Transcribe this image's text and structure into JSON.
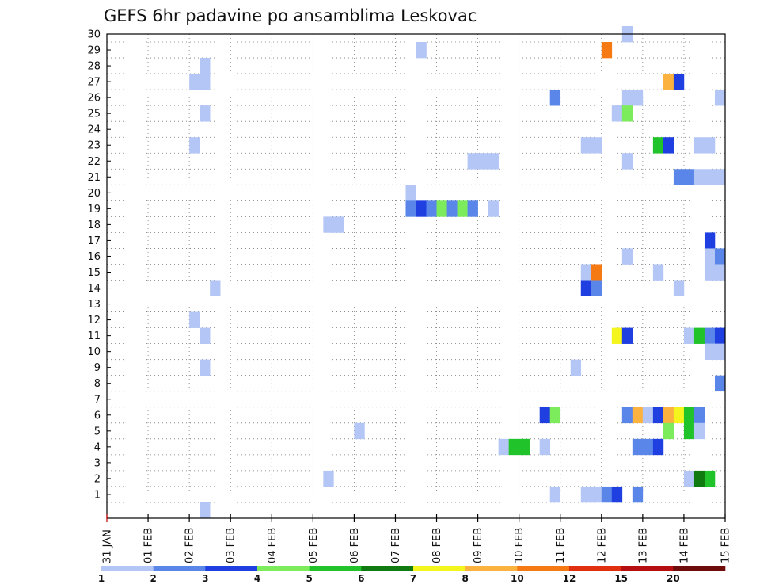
{
  "chart_data": {
    "type": "heatmap",
    "title": "GEFS 6hr padavine po ansamblima Leskovac",
    "y_members": [
      "1",
      "2",
      "3",
      "4",
      "5",
      "6",
      "7",
      "8",
      "9",
      "10",
      "11",
      "12",
      "13",
      "14",
      "15",
      "16",
      "17",
      "18",
      "19",
      "20",
      "21",
      "22",
      "23",
      "24",
      "25",
      "26",
      "27",
      "28",
      "29",
      "30"
    ],
    "x_ticks": [
      "31 JAN",
      "01 FEB",
      "02 FEB",
      "03 FEB",
      "04 FEB",
      "05 FEB",
      "06 FEB",
      "07 FEB",
      "08 FEB",
      "09 FEB",
      "10 FEB",
      "11 FEB",
      "12 FEB",
      "13 FEB",
      "14 FEB",
      "15 FEB"
    ],
    "x_range_days": [
      0,
      15
    ],
    "y_range": [
      0,
      30
    ],
    "grid": true,
    "colorbar": {
      "labels": [
        "1",
        "2",
        "3",
        "4",
        "5",
        "6",
        "7",
        "8",
        "10",
        "12",
        "15",
        "20"
      ],
      "colors": [
        "#b3c6f5",
        "#5a86ea",
        "#1f3fe0",
        "#7ceb5c",
        "#21c32a",
        "#0f7a0f",
        "#f5f51e",
        "#fbb23f",
        "#f57a14",
        "#e0300f",
        "#b50f0f",
        "#6e0b0b"
      ]
    },
    "cells": [
      {
        "m": 30,
        "d": 12.5,
        "v": 1
      },
      {
        "m": 29,
        "d": 7.5,
        "v": 1
      },
      {
        "m": 29,
        "d": 12,
        "v": 10
      },
      {
        "m": 28,
        "d": 2.25,
        "v": 1
      },
      {
        "m": 27,
        "d": 2,
        "v": 1
      },
      {
        "m": 27,
        "d": 2.25,
        "v": 1
      },
      {
        "m": 27,
        "d": 13.5,
        "v": 8
      },
      {
        "m": 27,
        "d": 13.75,
        "v": 3
      },
      {
        "m": 26,
        "d": 10.75,
        "v": 2
      },
      {
        "m": 26,
        "d": 12.5,
        "v": 1
      },
      {
        "m": 26,
        "d": 12.75,
        "v": 1
      },
      {
        "m": 26,
        "d": 14.75,
        "v": 1
      },
      {
        "m": 25,
        "d": 2.25,
        "v": 1
      },
      {
        "m": 25,
        "d": 12.25,
        "v": 1
      },
      {
        "m": 25,
        "d": 12.5,
        "v": 4
      },
      {
        "m": 23,
        "d": 2,
        "v": 1
      },
      {
        "m": 23,
        "d": 11.5,
        "v": 1
      },
      {
        "m": 23,
        "d": 11.75,
        "v": 1
      },
      {
        "m": 23,
        "d": 13.25,
        "v": 5
      },
      {
        "m": 23,
        "d": 13.5,
        "v": 3
      },
      {
        "m": 23,
        "d": 14.25,
        "v": 1
      },
      {
        "m": 23,
        "d": 14.5,
        "v": 1
      },
      {
        "m": 22,
        "d": 8.75,
        "v": 1
      },
      {
        "m": 22,
        "d": 9,
        "v": 1
      },
      {
        "m": 22,
        "d": 9.25,
        "v": 1
      },
      {
        "m": 22,
        "d": 12.5,
        "v": 1
      },
      {
        "m": 21,
        "d": 13.75,
        "v": 2
      },
      {
        "m": 21,
        "d": 14,
        "v": 2
      },
      {
        "m": 21,
        "d": 14.25,
        "v": 1
      },
      {
        "m": 21,
        "d": 14.5,
        "v": 1
      },
      {
        "m": 21,
        "d": 14.75,
        "v": 1
      },
      {
        "m": 20,
        "d": 7.25,
        "v": 1
      },
      {
        "m": 19,
        "d": 7.25,
        "v": 2
      },
      {
        "m": 19,
        "d": 7.5,
        "v": 3
      },
      {
        "m": 19,
        "d": 7.75,
        "v": 2
      },
      {
        "m": 19,
        "d": 8,
        "v": 4
      },
      {
        "m": 19,
        "d": 8.25,
        "v": 2
      },
      {
        "m": 19,
        "d": 8.5,
        "v": 4
      },
      {
        "m": 19,
        "d": 8.75,
        "v": 2
      },
      {
        "m": 19,
        "d": 9.25,
        "v": 1
      },
      {
        "m": 18,
        "d": 5.25,
        "v": 1
      },
      {
        "m": 18,
        "d": 5.5,
        "v": 1
      },
      {
        "m": 17,
        "d": 14.5,
        "v": 3
      },
      {
        "m": 16,
        "d": 12.5,
        "v": 1
      },
      {
        "m": 16,
        "d": 14.5,
        "v": 1
      },
      {
        "m": 16,
        "d": 14.75,
        "v": 2
      },
      {
        "m": 15,
        "d": 11.5,
        "v": 1
      },
      {
        "m": 15,
        "d": 11.75,
        "v": 10
      },
      {
        "m": 15,
        "d": 13.25,
        "v": 1
      },
      {
        "m": 15,
        "d": 14.5,
        "v": 1
      },
      {
        "m": 15,
        "d": 14.75,
        "v": 1
      },
      {
        "m": 14,
        "d": 2.5,
        "v": 1
      },
      {
        "m": 14,
        "d": 11.5,
        "v": 3
      },
      {
        "m": 14,
        "d": 11.75,
        "v": 2
      },
      {
        "m": 14,
        "d": 13.75,
        "v": 1
      },
      {
        "m": 12,
        "d": 2,
        "v": 1
      },
      {
        "m": 11,
        "d": 2.25,
        "v": 1
      },
      {
        "m": 11,
        "d": 12.25,
        "v": 7
      },
      {
        "m": 11,
        "d": 12.5,
        "v": 3
      },
      {
        "m": 11,
        "d": 14,
        "v": 1
      },
      {
        "m": 11,
        "d": 14.25,
        "v": 5
      },
      {
        "m": 11,
        "d": 14.5,
        "v": 2
      },
      {
        "m": 11,
        "d": 14.75,
        "v": 3
      },
      {
        "m": 10,
        "d": 14.5,
        "v": 1
      },
      {
        "m": 10,
        "d": 14.75,
        "v": 1
      },
      {
        "m": 9,
        "d": 2.25,
        "v": 1
      },
      {
        "m": 9,
        "d": 11.25,
        "v": 1
      },
      {
        "m": 8,
        "d": 14.75,
        "v": 2
      },
      {
        "m": 6,
        "d": 10.5,
        "v": 3
      },
      {
        "m": 6,
        "d": 10.75,
        "v": 4
      },
      {
        "m": 6,
        "d": 12.5,
        "v": 2
      },
      {
        "m": 6,
        "d": 12.75,
        "v": 8
      },
      {
        "m": 6,
        "d": 13,
        "v": 1
      },
      {
        "m": 6,
        "d": 13.25,
        "v": 3
      },
      {
        "m": 6,
        "d": 13.5,
        "v": 8
      },
      {
        "m": 6,
        "d": 13.75,
        "v": 7
      },
      {
        "m": 6,
        "d": 14,
        "v": 5
      },
      {
        "m": 6,
        "d": 14.25,
        "v": 2
      },
      {
        "m": 5,
        "d": 6,
        "v": 1
      },
      {
        "m": 5,
        "d": 13.5,
        "v": 4
      },
      {
        "m": 5,
        "d": 14,
        "v": 5
      },
      {
        "m": 5,
        "d": 14.25,
        "v": 1
      },
      {
        "m": 4,
        "d": 9.5,
        "v": 1
      },
      {
        "m": 4,
        "d": 9.75,
        "v": 5
      },
      {
        "m": 4,
        "d": 10,
        "v": 5
      },
      {
        "m": 4,
        "d": 10.5,
        "v": 1
      },
      {
        "m": 4,
        "d": 12.75,
        "v": 2
      },
      {
        "m": 4,
        "d": 13,
        "v": 2
      },
      {
        "m": 4,
        "d": 13.25,
        "v": 3
      },
      {
        "m": 2,
        "d": 5.25,
        "v": 1
      },
      {
        "m": 2,
        "d": 14,
        "v": 1
      },
      {
        "m": 2,
        "d": 14.25,
        "v": 6
      },
      {
        "m": 2,
        "d": 14.5,
        "v": 5
      },
      {
        "m": 1,
        "d": 10.75,
        "v": 1
      },
      {
        "m": 1,
        "d": 11.5,
        "v": 1
      },
      {
        "m": 1,
        "d": 11.75,
        "v": 1
      },
      {
        "m": 1,
        "d": 12,
        "v": 2
      },
      {
        "m": 1,
        "d": 12.25,
        "v": 3
      },
      {
        "m": 1,
        "d": 12.75,
        "v": 2
      },
      {
        "m": 0,
        "d": 2.25,
        "v": 1
      }
    ]
  }
}
